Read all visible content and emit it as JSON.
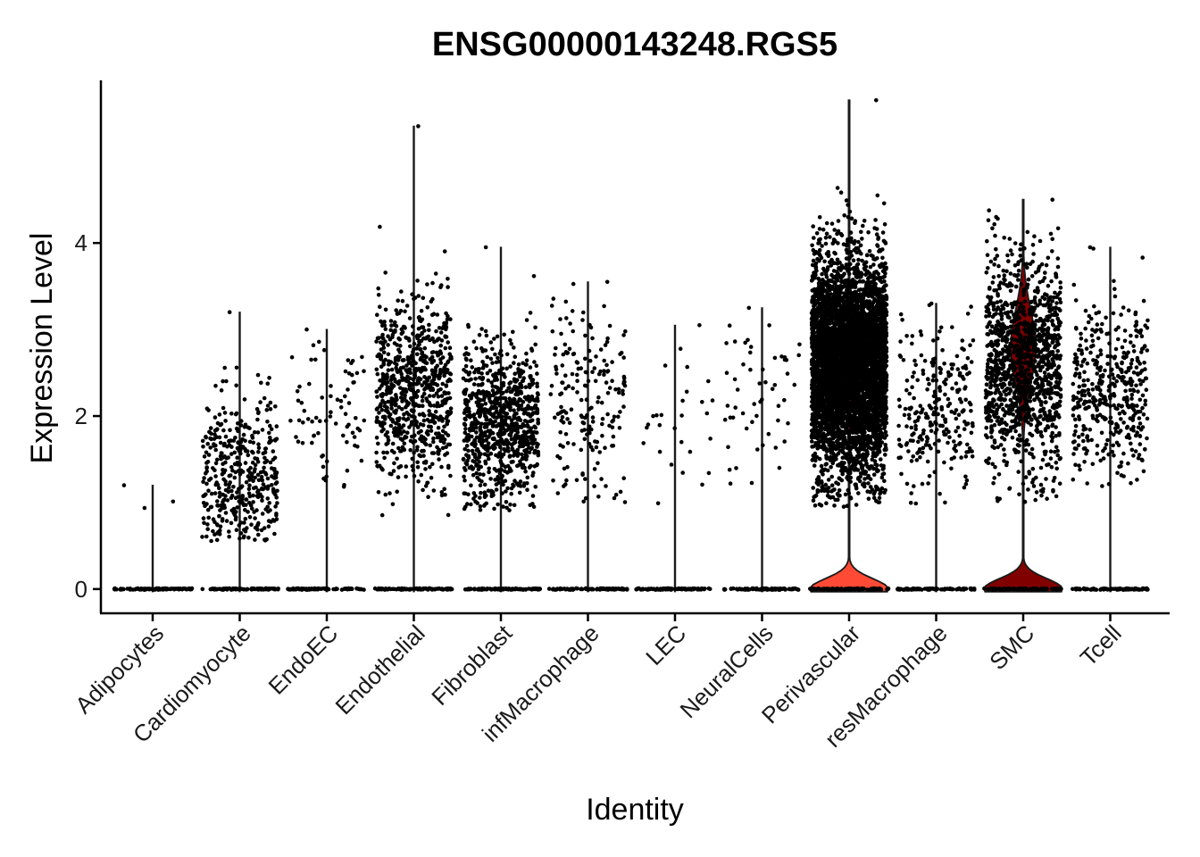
{
  "chart_data": {
    "type": "violin",
    "title": "ENSG00000143248.RGS5",
    "xlabel": "Identity",
    "ylabel": "Expression Level",
    "ylim": [
      -0.28,
      5.88
    ],
    "yticks": [
      0,
      2,
      4
    ],
    "categories": [
      "Adipocytes",
      "Cardiomyocyte",
      "EndoEC",
      "Endothelial",
      "Fibroblast",
      "infMacrophage",
      "LEC",
      "NeuralCells",
      "Perivascular",
      "resMacrophage",
      "SMC",
      "Tcell"
    ],
    "groups": [
      {
        "name": "Adipocytes",
        "max": 1.2,
        "nonzero_count": 3,
        "nonzero_mean": 1.05,
        "nonzero_sd": 0.12,
        "nonzero_min": 0.9,
        "nonzero_max": 1.2,
        "violin_color": "#F8766D"
      },
      {
        "name": "Cardiomyocyte",
        "max": 3.2,
        "nonzero_count": 420,
        "nonzero_mean": 1.3,
        "nonzero_sd": 0.45,
        "nonzero_min": 0.55,
        "nonzero_max": 3.2,
        "violin_color": "#DE8C00"
      },
      {
        "name": "EndoEC",
        "max": 3.0,
        "nonzero_count": 75,
        "nonzero_mean": 2.1,
        "nonzero_sd": 0.5,
        "nonzero_min": 1.1,
        "nonzero_max": 3.0,
        "violin_color": "#B79F00"
      },
      {
        "name": "Endothelial",
        "max": 5.35,
        "nonzero_count": 750,
        "nonzero_mean": 2.3,
        "nonzero_sd": 0.55,
        "nonzero_min": 0.85,
        "nonzero_max": 5.35,
        "violin_color": "#7CAE00"
      },
      {
        "name": "Fibroblast",
        "max": 3.95,
        "nonzero_count": 850,
        "nonzero_mean": 1.9,
        "nonzero_sd": 0.45,
        "nonzero_min": 0.9,
        "nonzero_max": 3.95,
        "violin_color": "#00BA38"
      },
      {
        "name": "infMacrophage",
        "max": 3.55,
        "nonzero_count": 190,
        "nonzero_mean": 2.2,
        "nonzero_sd": 0.6,
        "nonzero_min": 1.0,
        "nonzero_max": 3.55,
        "violin_color": "#00C08B"
      },
      {
        "name": "LEC",
        "max": 3.05,
        "nonzero_count": 28,
        "nonzero_mean": 1.8,
        "nonzero_sd": 0.5,
        "nonzero_min": 0.95,
        "nonzero_max": 3.05,
        "violin_color": "#00BFC4"
      },
      {
        "name": "NeuralCells",
        "max": 3.25,
        "nonzero_count": 55,
        "nonzero_mean": 2.2,
        "nonzero_sd": 0.55,
        "nonzero_min": 1.2,
        "nonzero_max": 3.25,
        "violin_color": "#00B4F0"
      },
      {
        "name": "Perivascular",
        "max": 5.65,
        "nonzero_count": 5200,
        "nonzero_mean": 2.6,
        "nonzero_sd": 0.6,
        "nonzero_min": 0.95,
        "nonzero_max": 5.65,
        "violin_color": "#FF4A36"
      },
      {
        "name": "resMacrophage",
        "max": 3.3,
        "nonzero_count": 260,
        "nonzero_mean": 2.1,
        "nonzero_sd": 0.5,
        "nonzero_min": 0.95,
        "nonzero_max": 3.3,
        "violin_color": "#C77CFF"
      },
      {
        "name": "SMC",
        "max": 4.5,
        "nonzero_count": 1250,
        "nonzero_mean": 2.6,
        "nonzero_sd": 0.6,
        "nonzero_min": 0.9,
        "nonzero_max": 4.5,
        "violin_color": "#800000"
      },
      {
        "name": "Tcell",
        "max": 3.95,
        "nonzero_count": 420,
        "nonzero_mean": 2.3,
        "nonzero_sd": 0.5,
        "nonzero_min": 1.15,
        "nonzero_max": 3.95,
        "violin_color": "#FF64B0"
      }
    ],
    "visible_violin_fill": [
      "Perivascular",
      "SMC"
    ],
    "point_color": "#000000",
    "grid": false,
    "legend": "none"
  }
}
